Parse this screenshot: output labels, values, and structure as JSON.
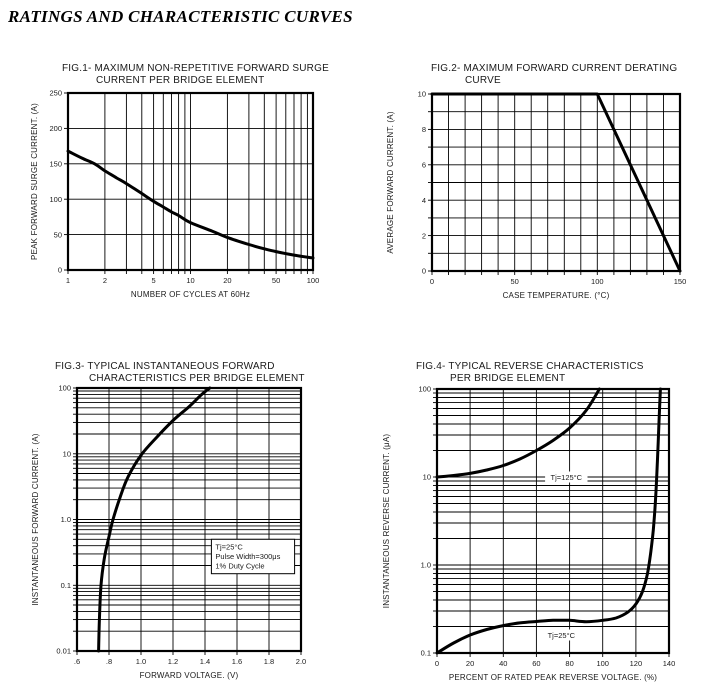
{
  "page": {
    "title": "RATINGS AND CHARACTERISTIC CURVES"
  },
  "chart_data": [
    {
      "id": "fig1",
      "type": "line",
      "title_lines": [
        "FIG.1- MAXIMUM NON-REPETITIVE FORWARD SURGE",
        "CURRENT PER BRIDGE ELEMENT"
      ],
      "xlabel": "NUMBER OF CYCLES AT 60Hz",
      "ylabel": "PEAK FORWARD SURGE CURRENT. (A)",
      "x_axis": {
        "type": "log",
        "min": 1,
        "max": 100,
        "ticks": [
          [
            1,
            "1"
          ],
          [
            2,
            "2"
          ],
          [
            5,
            "5"
          ],
          [
            10,
            "10"
          ],
          [
            20,
            "20"
          ],
          [
            50,
            "50"
          ],
          [
            100,
            "100"
          ]
        ]
      },
      "y_axis": {
        "type": "linear",
        "min": 0,
        "max": 250,
        "grid_step": 50,
        "ticks": [
          [
            0,
            "0"
          ],
          [
            50,
            "50"
          ],
          [
            100,
            "100"
          ],
          [
            150,
            "150"
          ],
          [
            200,
            "200"
          ],
          [
            250,
            "250"
          ]
        ]
      },
      "series": [
        {
          "name": "surge-current",
          "smooth": true,
          "points": [
            [
              1,
              168
            ],
            [
              1.3,
              158
            ],
            [
              1.65,
              150
            ],
            [
              2,
              140
            ],
            [
              2.5,
              130
            ],
            [
              3,
              122
            ],
            [
              4,
              108
            ],
            [
              5,
              97
            ],
            [
              6,
              89
            ],
            [
              7,
              82
            ],
            [
              8,
              77
            ],
            [
              10,
              67
            ],
            [
              15,
              55
            ],
            [
              20,
              46
            ],
            [
              30,
              36
            ],
            [
              40,
              30
            ],
            [
              50,
              26
            ],
            [
              70,
              21
            ],
            [
              100,
              17
            ]
          ]
        }
      ],
      "annotations": []
    },
    {
      "id": "fig2",
      "type": "line",
      "title_lines": [
        "FIG.2- MAXIMUM FORWARD CURRENT DERATING",
        "CURVE"
      ],
      "xlabel": "CASE TEMPERATURE. (°C)",
      "ylabel": "AVERAGE FORWARD CURRENT. (A)",
      "x_axis": {
        "type": "linear",
        "min": 0,
        "max": 150,
        "grid_step": 10,
        "ticks": [
          [
            0,
            "0"
          ],
          [
            50,
            "50"
          ],
          [
            100,
            "100"
          ],
          [
            150,
            "150"
          ]
        ]
      },
      "y_axis": {
        "type": "linear",
        "min": 0,
        "max": 10,
        "grid_step": 1,
        "ticks": [
          [
            0,
            "0"
          ],
          [
            2,
            "2"
          ],
          [
            4,
            "4"
          ],
          [
            6,
            "6"
          ],
          [
            8,
            "8"
          ],
          [
            10,
            "10"
          ]
        ]
      },
      "series": [
        {
          "name": "derating-curve",
          "smooth": false,
          "points": [
            [
              0,
              10
            ],
            [
              100,
              10
            ],
            [
              150,
              0
            ]
          ]
        }
      ],
      "annotations": []
    },
    {
      "id": "fig3",
      "type": "line",
      "title_lines": [
        "FIG.3- TYPICAL INSTANTANEOUS FORWARD",
        "CHARACTERISTICS PER BRIDGE ELEMENT"
      ],
      "xlabel": "FORWARD VOLTAGE. (V)",
      "ylabel": "INSTANTANEOUS FORWARD CURRENT. (A)",
      "x_axis": {
        "type": "linear",
        "min": 0.6,
        "max": 2.0,
        "grid_step": 0.2,
        "ticks": [
          [
            0.6,
            ".6"
          ],
          [
            0.8,
            ".8"
          ],
          [
            1.0,
            "1.0"
          ],
          [
            1.2,
            "1.2"
          ],
          [
            1.4,
            "1.4"
          ],
          [
            1.6,
            "1.6"
          ],
          [
            1.8,
            "1.8"
          ],
          [
            2.0,
            "2.0"
          ]
        ]
      },
      "y_axis": {
        "type": "log",
        "min": 0.01,
        "max": 100,
        "ticks": [
          [
            0.01,
            "0.01"
          ],
          [
            0.1,
            "0.1"
          ],
          [
            1,
            "1.0"
          ],
          [
            10,
            "10"
          ],
          [
            100,
            "100"
          ]
        ]
      },
      "series": [
        {
          "name": "forward-characteristic",
          "smooth": true,
          "points": [
            [
              0.735,
              0.01
            ],
            [
              0.74,
              0.03
            ],
            [
              0.75,
              0.1
            ],
            [
              0.77,
              0.25
            ],
            [
              0.8,
              0.55
            ],
            [
              0.825,
              1.0
            ],
            [
              0.87,
              2.2
            ],
            [
              0.92,
              4.5
            ],
            [
              1.0,
              9.5
            ],
            [
              1.1,
              18
            ],
            [
              1.2,
              32
            ],
            [
              1.3,
              52
            ],
            [
              1.38,
              80
            ],
            [
              1.43,
              100
            ]
          ]
        }
      ],
      "annotations": [
        {
          "kind": "box",
          "x1": 1.44,
          "x2": 1.96,
          "y_top": 0.5,
          "y_bottom": 0.15,
          "lines": [
            "Tj=25°C",
            "Pulse Width=300μs",
            "1% Duty Cycle"
          ]
        }
      ]
    },
    {
      "id": "fig4",
      "type": "line",
      "title_lines": [
        "FIG.4- TYPICAL REVERSE CHARACTERISTICS",
        "PER BRIDGE ELEMENT"
      ],
      "xlabel": "PERCENT OF RATED PEAK REVERSE VOLTAGE. (%)",
      "ylabel": "INSTANTANEOUS REVERSE CURRENT. (μA)",
      "x_axis": {
        "type": "linear",
        "min": 0,
        "max": 140,
        "grid_step": 20,
        "ticks": [
          [
            0,
            "0"
          ],
          [
            20,
            "20"
          ],
          [
            40,
            "40"
          ],
          [
            60,
            "60"
          ],
          [
            80,
            "80"
          ],
          [
            100,
            "100"
          ],
          [
            120,
            "120"
          ],
          [
            140,
            "140"
          ]
        ]
      },
      "y_axis": {
        "type": "log",
        "min": 0.1,
        "max": 100,
        "ticks": [
          [
            0.1,
            "0.1"
          ],
          [
            1,
            "1.0"
          ],
          [
            10,
            "10"
          ],
          [
            100,
            "100"
          ]
        ]
      },
      "series": [
        {
          "name": "reverse-tj125",
          "smooth": true,
          "points": [
            [
              0,
              10
            ],
            [
              10,
              10.4
            ],
            [
              20,
              11
            ],
            [
              30,
              12
            ],
            [
              40,
              13.5
            ],
            [
              50,
              16
            ],
            [
              60,
              20
            ],
            [
              70,
              26
            ],
            [
              80,
              36
            ],
            [
              90,
              57
            ],
            [
              98,
              100
            ]
          ]
        },
        {
          "name": "reverse-tj25",
          "smooth": true,
          "points": [
            [
              0,
              0.1
            ],
            [
              10,
              0.13
            ],
            [
              20,
              0.16
            ],
            [
              30,
              0.185
            ],
            [
              40,
              0.205
            ],
            [
              50,
              0.22
            ],
            [
              60,
              0.228
            ],
            [
              70,
              0.235
            ],
            [
              80,
              0.235
            ],
            [
              90,
              0.227
            ],
            [
              100,
              0.235
            ],
            [
              108,
              0.25
            ],
            [
              115,
              0.29
            ],
            [
              120,
              0.36
            ],
            [
              124,
              0.5
            ],
            [
              127,
              0.8
            ],
            [
              129,
              1.4
            ],
            [
              130.5,
              2.5
            ],
            [
              132,
              6
            ],
            [
              133,
              15
            ],
            [
              134,
              45
            ],
            [
              134.8,
              100
            ]
          ]
        }
      ],
      "annotations": [
        {
          "kind": "label",
          "x": 78,
          "y": 10,
          "text": "Tj=125°C"
        },
        {
          "kind": "label",
          "x": 75,
          "y": 0.16,
          "text": "Tj=25°C"
        }
      ]
    }
  ]
}
